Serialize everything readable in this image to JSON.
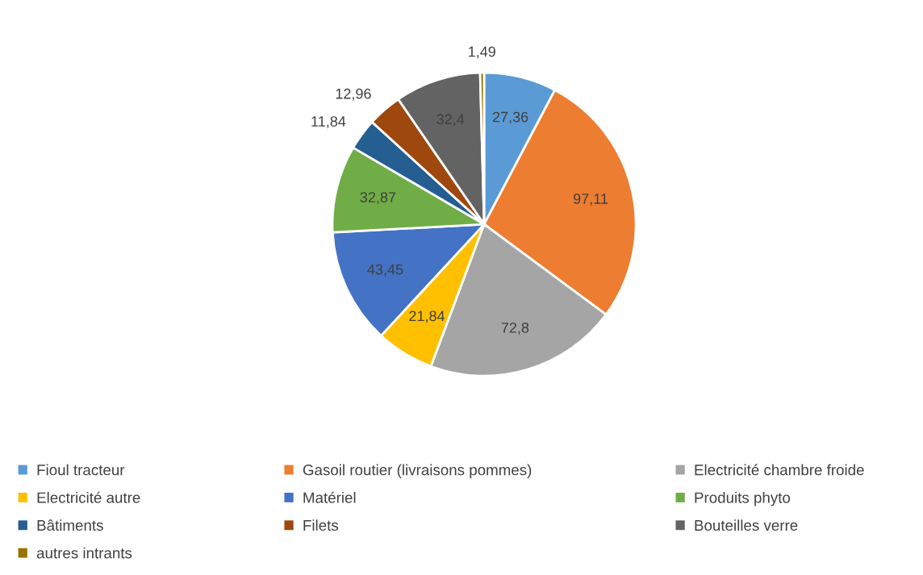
{
  "chart_data": {
    "type": "pie",
    "categories": [
      "Fioul tracteur",
      "Gasoil routier (livraisons pommes)",
      "Electricité chambre froide",
      "Electricité autre",
      "Matériel",
      "Produits phyto",
      "Bâtiments",
      "Filets",
      "Bouteilles verre",
      "autres intrants"
    ],
    "values": [
      27.36,
      97.11,
      72.8,
      21.84,
      43.45,
      32.87,
      11.84,
      12.96,
      32.4,
      1.49
    ],
    "value_labels": [
      "27,36",
      "97,11",
      "72,8",
      "21,84",
      "43,45",
      "32,87",
      "11,84",
      "12,96",
      "32,4",
      "1,49"
    ],
    "colors": [
      "#5b9bd5",
      "#ed7d31",
      "#a5a5a5",
      "#ffc000",
      "#4472c4",
      "#70ad47",
      "#255e91",
      "#9e480e",
      "#636363",
      "#997300"
    ],
    "legend": "bottom"
  }
}
